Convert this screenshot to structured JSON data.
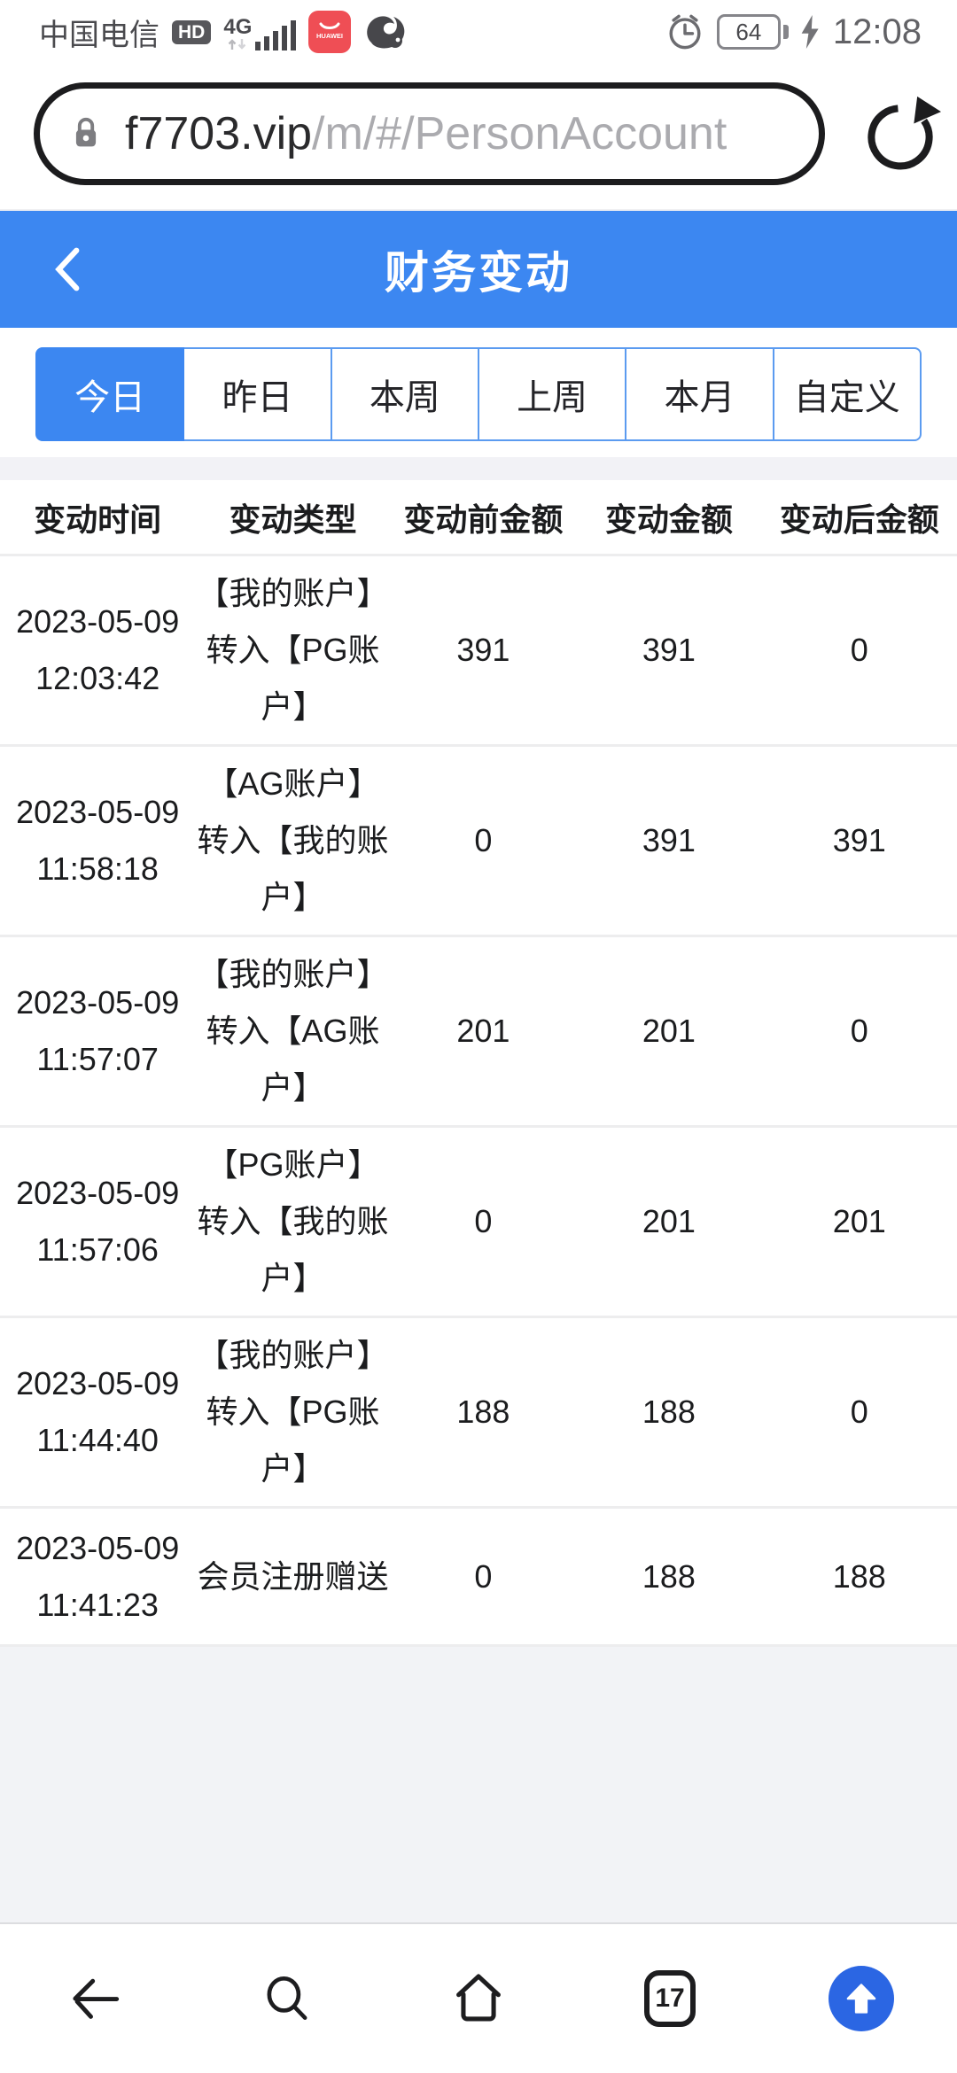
{
  "colors": {
    "accent_blue": "#3c87f1",
    "fab_blue": "#2b66e3",
    "filler_gray": "#f2f3f6",
    "band_gray": "#f2f2f6",
    "divider": "#ededee"
  },
  "status_bar": {
    "carrier": "中国电信",
    "hd_badge": "HD",
    "network": "4G",
    "battery_level": "64",
    "time": "12:08"
  },
  "browser": {
    "url_domain": "f7703.vip",
    "url_path": "/m/#/PersonAccount"
  },
  "header": {
    "title": "财务变动"
  },
  "filter_tabs": {
    "active_index": 0,
    "items": [
      {
        "label": "今日"
      },
      {
        "label": "昨日"
      },
      {
        "label": "本周"
      },
      {
        "label": "上周"
      },
      {
        "label": "本月"
      },
      {
        "label": "自定义"
      }
    ]
  },
  "table": {
    "headers": [
      "变动时间",
      "变动类型",
      "变动前金额",
      "变动金额",
      "变动后金额"
    ],
    "rows": [
      {
        "date": "2023-05-09",
        "time": "12:03:42",
        "type_lines": [
          "【我的账户】",
          "转入【PG账",
          "户】"
        ],
        "before": "391",
        "amount": "391",
        "after": "0"
      },
      {
        "date": "2023-05-09",
        "time": "11:58:18",
        "type_lines": [
          "【AG账户】",
          "转入【我的账",
          "户】"
        ],
        "before": "0",
        "amount": "391",
        "after": "391"
      },
      {
        "date": "2023-05-09",
        "time": "11:57:07",
        "type_lines": [
          "【我的账户】",
          "转入【AG账",
          "户】"
        ],
        "before": "201",
        "amount": "201",
        "after": "0"
      },
      {
        "date": "2023-05-09",
        "time": "11:57:06",
        "type_lines": [
          "【PG账户】",
          "转入【我的账",
          "户】"
        ],
        "before": "0",
        "amount": "201",
        "after": "201"
      },
      {
        "date": "2023-05-09",
        "time": "11:44:40",
        "type_lines": [
          "【我的账户】",
          "转入【PG账",
          "户】"
        ],
        "before": "188",
        "amount": "188",
        "after": "0"
      },
      {
        "date": "2023-05-09",
        "time": "11:41:23",
        "type_lines": [
          "会员注册赠送"
        ],
        "before": "0",
        "amount": "188",
        "after": "188"
      }
    ]
  },
  "bottom_nav": {
    "tab_count": "17"
  }
}
